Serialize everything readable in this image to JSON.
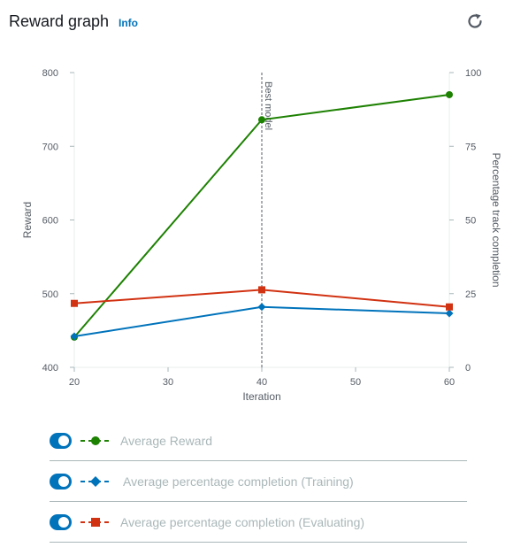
{
  "header": {
    "title": "Reward graph",
    "info_label": "Info"
  },
  "chart_data": {
    "type": "line",
    "xlabel": "Iteration",
    "ylabel": "Reward",
    "y2label": "Percentage track completion",
    "x": [
      20,
      40,
      60
    ],
    "xlim": [
      20,
      60
    ],
    "xticks": [
      20,
      30,
      40,
      50,
      60
    ],
    "ylim": [
      400,
      800
    ],
    "yticks": [
      400,
      500,
      600,
      700,
      800
    ],
    "y2lim": [
      0,
      100
    ],
    "y2ticks": [
      0,
      25,
      50,
      75,
      100
    ],
    "grid": false,
    "annotation": {
      "x": 40,
      "label": "Best model"
    },
    "series": [
      {
        "name": "Average Reward",
        "axis": "left",
        "color": "#1d8102",
        "marker": "circle",
        "values": [
          441,
          736,
          770
        ]
      },
      {
        "name": "Average percentage completion (Training)",
        "axis": "right",
        "color": "#0073bb",
        "marker": "diamond",
        "values": [
          10.5,
          20.5,
          18.3
        ]
      },
      {
        "name": "Average percentage completion (Evaluating)",
        "axis": "right",
        "color": "#d13212",
        "marker": "square",
        "values": [
          21.7,
          26.3,
          20.5
        ]
      }
    ]
  },
  "legend": [
    {
      "label": "Average Reward",
      "color": "#1d8102",
      "marker": "circle",
      "enabled": true
    },
    {
      "label": "Average percentage completion (Training)",
      "color": "#0073bb",
      "marker": "diamond",
      "enabled": true
    },
    {
      "label": "Average percentage completion (Evaluating)",
      "color": "#d13212",
      "marker": "square",
      "enabled": true
    }
  ]
}
